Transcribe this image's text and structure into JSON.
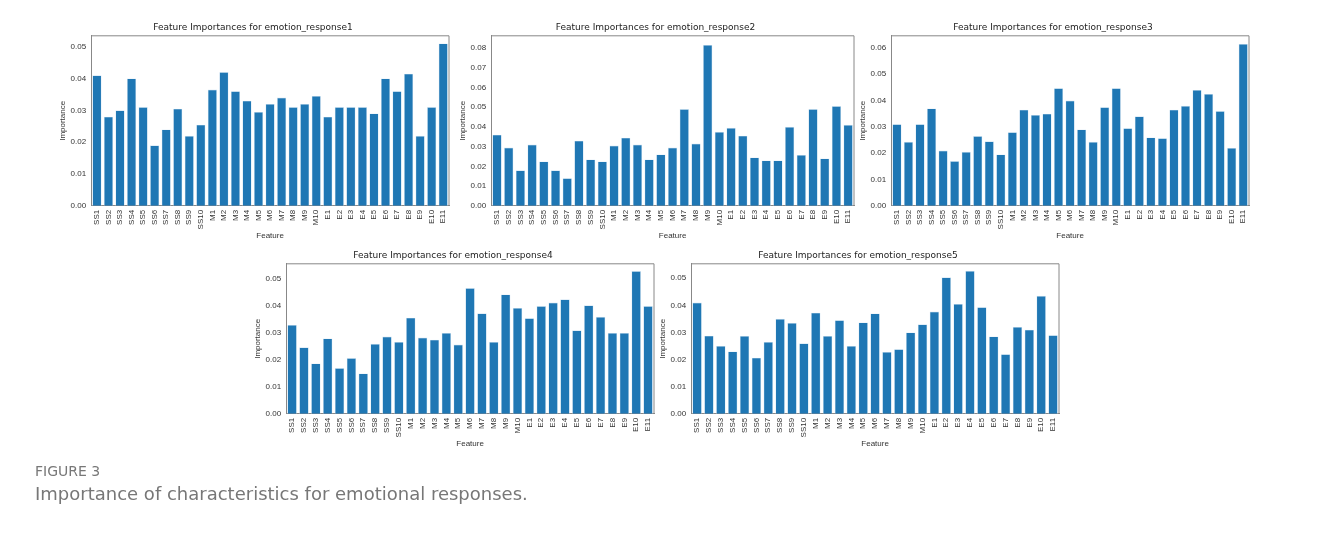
{
  "chart_data": [
    {
      "type": "bar",
      "title": "Feature Importances for emotion_response1",
      "xlabel": "Feature",
      "ylabel": "Importance",
      "categories": [
        "SS1",
        "SS2",
        "SS3",
        "SS4",
        "SS5",
        "SS6",
        "SS7",
        "SS8",
        "SS9",
        "SS10",
        "M1",
        "M2",
        "M3",
        "M4",
        "M5",
        "M6",
        "M7",
        "M8",
        "M9",
        "M10",
        "E1",
        "E2",
        "E3",
        "E4",
        "E5",
        "E6",
        "E7",
        "E8",
        "E9",
        "E10",
        "E11"
      ],
      "values": [
        0.041,
        0.028,
        0.03,
        0.04,
        0.031,
        0.019,
        0.024,
        0.0305,
        0.022,
        0.0255,
        0.0365,
        0.042,
        0.036,
        0.033,
        0.0295,
        0.032,
        0.034,
        0.031,
        0.032,
        0.0345,
        0.028,
        0.031,
        0.031,
        0.031,
        0.029,
        0.04,
        0.036,
        0.0415,
        0.022,
        0.031,
        0.051
      ],
      "color": "#1f77b4",
      "ylim": [
        0,
        0.0534
      ],
      "yticks": [
        {
          "value": 0,
          "label": "0.00"
        },
        {
          "value": 0.01,
          "label": "0.01"
        },
        {
          "value": 0.02,
          "label": "0.02"
        },
        {
          "value": 0.03,
          "label": "0.03"
        },
        {
          "value": 0.04,
          "label": "0.04"
        },
        {
          "value": 0.05,
          "label": "0.05"
        }
      ],
      "grid": false,
      "legend": false
    },
    {
      "type": "bar",
      "title": "Feature Importances for emotion_response2",
      "xlabel": "Feature",
      "ylabel": "Importance",
      "categories": [
        "SS1",
        "SS2",
        "SS3",
        "SS4",
        "SS5",
        "SS6",
        "SS7",
        "SS8",
        "SS9",
        "SS10",
        "M1",
        "M2",
        "M3",
        "M4",
        "M5",
        "M6",
        "M7",
        "M8",
        "M9",
        "M10",
        "E1",
        "E2",
        "E3",
        "E4",
        "E5",
        "E6",
        "E7",
        "E8",
        "E9",
        "E10",
        "E11"
      ],
      "values": [
        0.036,
        0.0295,
        0.018,
        0.031,
        0.0225,
        0.018,
        0.014,
        0.033,
        0.0235,
        0.0225,
        0.0305,
        0.0345,
        0.031,
        0.0235,
        0.026,
        0.0295,
        0.049,
        0.0315,
        0.0815,
        0.0375,
        0.0395,
        0.0355,
        0.0245,
        0.023,
        0.023,
        0.04,
        0.0258,
        0.049,
        0.024,
        0.0505,
        0.041
      ],
      "color": "#1f77b4",
      "ylim": [
        0,
        0.0861
      ],
      "yticks": [
        {
          "value": 0,
          "label": "0.00"
        },
        {
          "value": 0.01,
          "label": "0.01"
        },
        {
          "value": 0.02,
          "label": "0.02"
        },
        {
          "value": 0.03,
          "label": "0.03"
        },
        {
          "value": 0.04,
          "label": "0.04"
        },
        {
          "value": 0.05,
          "label": "0.05"
        },
        {
          "value": 0.06,
          "label": "0.06"
        },
        {
          "value": 0.07,
          "label": "0.07"
        },
        {
          "value": 0.08,
          "label": "0.08"
        }
      ],
      "grid": false,
      "legend": false
    },
    {
      "type": "bar",
      "title": "Feature Importances for emotion_response3",
      "xlabel": "Feature",
      "ylabel": "Importance",
      "categories": [
        "SS1",
        "SS2",
        "SS3",
        "SS4",
        "SS5",
        "SS6",
        "SS7",
        "SS8",
        "SS9",
        "SS10",
        "M1",
        "M2",
        "M3",
        "M4",
        "M5",
        "M6",
        "M7",
        "M8",
        "M9",
        "M10",
        "E1",
        "E2",
        "E3",
        "E4",
        "E5",
        "E6",
        "E7",
        "E8",
        "E9",
        "E10",
        "E11"
      ],
      "values": [
        0.031,
        0.0243,
        0.031,
        0.037,
        0.021,
        0.017,
        0.0205,
        0.0265,
        0.0245,
        0.0195,
        0.028,
        0.0365,
        0.0345,
        0.035,
        0.0447,
        0.04,
        0.029,
        0.0243,
        0.0375,
        0.0447,
        0.0295,
        0.034,
        0.026,
        0.0257,
        0.0365,
        0.038,
        0.044,
        0.0425,
        0.036,
        0.022,
        0.0615
      ],
      "color": "#1f77b4",
      "ylim": [
        0,
        0.0646
      ],
      "yticks": [
        {
          "value": 0,
          "label": "0.00"
        },
        {
          "value": 0.01,
          "label": "0.01"
        },
        {
          "value": 0.02,
          "label": "0.02"
        },
        {
          "value": 0.03,
          "label": "0.03"
        },
        {
          "value": 0.04,
          "label": "0.04"
        },
        {
          "value": 0.05,
          "label": "0.05"
        },
        {
          "value": 0.06,
          "label": "0.06"
        }
      ],
      "grid": false,
      "legend": false
    },
    {
      "type": "bar",
      "title": "Feature Importances for emotion_response4",
      "xlabel": "Feature",
      "ylabel": "Importance",
      "categories": [
        "SS1",
        "SS2",
        "SS3",
        "SS4",
        "SS5",
        "SS6",
        "SS7",
        "SS8",
        "SS9",
        "SS10",
        "M1",
        "M2",
        "M3",
        "M4",
        "M5",
        "M6",
        "M7",
        "M8",
        "M9",
        "M10",
        "E1",
        "E2",
        "E3",
        "E4",
        "E5",
        "E6",
        "E7",
        "E8",
        "E9",
        "E10",
        "E11"
      ],
      "values": [
        0.033,
        0.0247,
        0.0187,
        0.028,
        0.017,
        0.0207,
        0.015,
        0.026,
        0.0287,
        0.0267,
        0.0357,
        0.0283,
        0.0275,
        0.03,
        0.0257,
        0.0467,
        0.0373,
        0.0267,
        0.0443,
        0.0393,
        0.0355,
        0.04,
        0.0413,
        0.0425,
        0.031,
        0.0403,
        0.036,
        0.03,
        0.03,
        0.053,
        0.04
      ],
      "color": "#1f77b4",
      "ylim": [
        0,
        0.0557
      ],
      "yticks": [
        {
          "value": 0,
          "label": "0.00"
        },
        {
          "value": 0.01,
          "label": "0.01"
        },
        {
          "value": 0.02,
          "label": "0.02"
        },
        {
          "value": 0.03,
          "label": "0.03"
        },
        {
          "value": 0.04,
          "label": "0.04"
        },
        {
          "value": 0.05,
          "label": "0.05"
        }
      ],
      "grid": false,
      "legend": false
    },
    {
      "type": "bar",
      "title": "Feature Importances for emotion_response5",
      "xlabel": "Feature",
      "ylabel": "Importance",
      "categories": [
        "SS1",
        "SS2",
        "SS3",
        "SS4",
        "SS5",
        "SS6",
        "SS7",
        "SS8",
        "SS9",
        "SS10",
        "M1",
        "M2",
        "M3",
        "M4",
        "M5",
        "M6",
        "M7",
        "M8",
        "M9",
        "M10",
        "E1",
        "E2",
        "E3",
        "E4",
        "E5",
        "E6",
        "E7",
        "E8",
        "E9",
        "E10",
        "E11"
      ],
      "values": [
        0.041,
        0.0288,
        0.025,
        0.023,
        0.0287,
        0.0207,
        0.0265,
        0.035,
        0.0335,
        0.026,
        0.0373,
        0.0287,
        0.0345,
        0.025,
        0.0337,
        0.037,
        0.0228,
        0.0238,
        0.03,
        0.033,
        0.0377,
        0.0503,
        0.0405,
        0.0527,
        0.0393,
        0.0285,
        0.022,
        0.032,
        0.031,
        0.0435,
        0.029
      ],
      "color": "#1f77b4",
      "ylim": [
        0,
        0.0553
      ],
      "yticks": [
        {
          "value": 0,
          "label": "0.00"
        },
        {
          "value": 0.01,
          "label": "0.01"
        },
        {
          "value": 0.02,
          "label": "0.02"
        },
        {
          "value": 0.03,
          "label": "0.03"
        },
        {
          "value": 0.04,
          "label": "0.04"
        },
        {
          "value": 0.05,
          "label": "0.05"
        }
      ],
      "grid": false,
      "legend": false,
      "annotations": [
        "FIGURE 3",
        "Importance of characteristics for emotional responses."
      ]
    }
  ]
}
